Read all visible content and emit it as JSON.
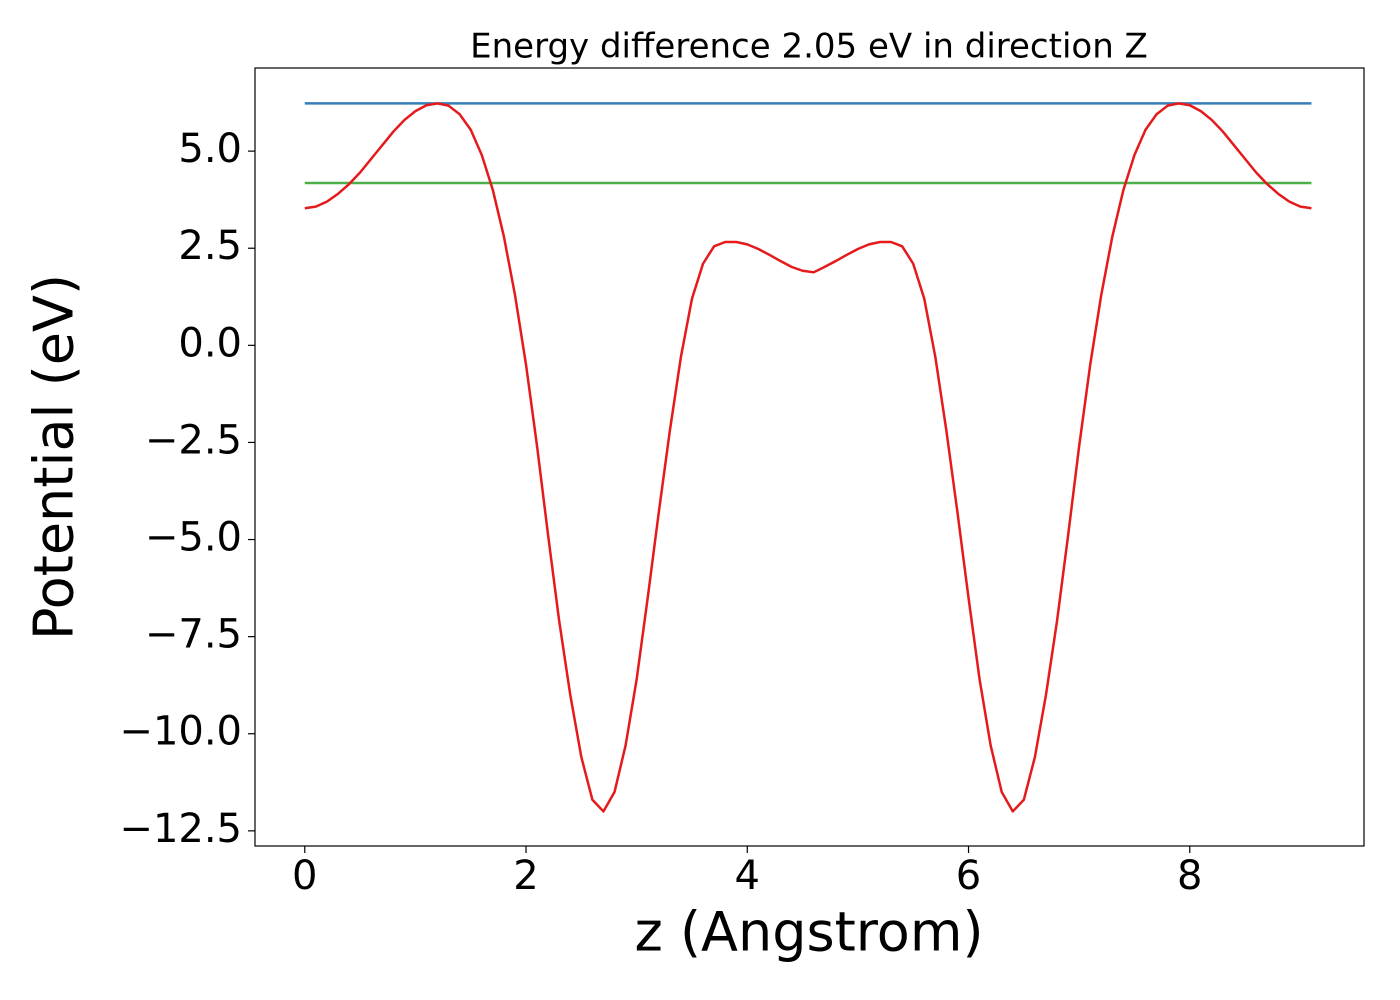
{
  "chart_data": {
    "type": "line",
    "title": "Energy difference 2.05 eV in direction Z",
    "xlabel": "z (Angstrom)",
    "ylabel": "Potential (eV)",
    "xlim": [
      -0.45,
      9.575
    ],
    "ylim": [
      -12.89,
      7.14
    ],
    "xticks": [
      0,
      2,
      4,
      6,
      8
    ],
    "yticks": [
      {
        "value": 5,
        "label": "5.0"
      },
      {
        "value": 2.5,
        "label": "2.5"
      },
      {
        "value": 0,
        "label": "0.0"
      },
      {
        "value": -2.5,
        "label": "−2.5"
      },
      {
        "value": -5,
        "label": "−5.0"
      },
      {
        "value": -7.5,
        "label": "−7.5"
      },
      {
        "value": -10,
        "label": "−10.0"
      },
      {
        "value": -12.5,
        "label": "−12.5"
      }
    ],
    "grid": false,
    "series": [
      {
        "color": "#377eb8",
        "x": [
          0,
          9.1
        ],
        "values": [
          6.23,
          6.23
        ]
      },
      {
        "color": "#4daf4a",
        "x": [
          0,
          9.1
        ],
        "values": [
          4.18,
          4.18
        ]
      },
      {
        "color": "#e41a1c",
        "x": [
          0,
          0.1,
          0.2,
          0.3,
          0.4,
          0.5,
          0.6,
          0.7,
          0.8,
          0.9,
          1.0,
          1.1,
          1.2,
          1.3,
          1.4,
          1.5,
          1.6,
          1.7,
          1.8,
          1.9,
          2.0,
          2.1,
          2.2,
          2.3,
          2.4,
          2.5,
          2.6,
          2.7,
          2.8,
          2.9,
          3.0,
          3.1,
          3.2,
          3.3,
          3.4,
          3.5,
          3.6,
          3.7,
          3.8,
          3.9,
          4.0,
          4.1,
          4.2,
          4.3,
          4.4,
          4.5,
          4.6,
          4.7,
          4.8,
          4.9,
          5.0,
          5.1,
          5.2,
          5.3,
          5.4,
          5.5,
          5.6,
          5.7,
          5.8,
          5.9,
          6.0,
          6.1,
          6.2,
          6.3,
          6.4,
          6.5,
          6.6,
          6.7,
          6.8,
          6.9,
          7.0,
          7.1,
          7.2,
          7.3,
          7.4,
          7.5,
          7.6,
          7.7,
          7.8,
          7.9,
          8.0,
          8.1,
          8.2,
          8.3,
          8.4,
          8.5,
          8.6,
          8.7,
          8.8,
          8.9,
          9.0,
          9.1
        ],
        "values": [
          3.53,
          3.57,
          3.7,
          3.9,
          4.15,
          4.45,
          4.8,
          5.15,
          5.5,
          5.8,
          6.03,
          6.18,
          6.23,
          6.17,
          5.95,
          5.55,
          4.9,
          4.0,
          2.8,
          1.3,
          -0.5,
          -2.6,
          -4.9,
          -7.1,
          -9.0,
          -10.6,
          -11.7,
          -12.0,
          -11.5,
          -10.3,
          -8.6,
          -6.5,
          -4.3,
          -2.2,
          -0.3,
          1.2,
          2.1,
          2.55,
          2.66,
          2.66,
          2.6,
          2.48,
          2.33,
          2.17,
          2.02,
          1.92,
          1.88,
          2.02,
          2.17,
          2.33,
          2.48,
          2.6,
          2.66,
          2.66,
          2.55,
          2.1,
          1.2,
          -0.3,
          -2.2,
          -4.3,
          -6.5,
          -8.6,
          -10.3,
          -11.5,
          -12.0,
          -11.7,
          -10.6,
          -9.0,
          -7.1,
          -4.9,
          -2.6,
          -0.5,
          1.3,
          2.8,
          4.0,
          4.9,
          5.55,
          5.95,
          6.17,
          6.23,
          6.18,
          6.03,
          5.8,
          5.5,
          5.15,
          4.8,
          4.45,
          4.15,
          3.9,
          3.7,
          3.57,
          3.53
        ]
      }
    ]
  }
}
